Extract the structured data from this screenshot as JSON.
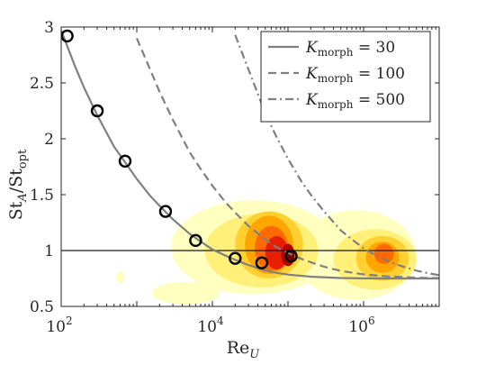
{
  "chart_data": {
    "type": "line",
    "xscale": "log",
    "xlim": [
      100,
      10000000
    ],
    "ylim": [
      0.5,
      3
    ],
    "xticks": [
      {
        "value": 100,
        "base": "10",
        "exp": "2"
      },
      {
        "value": 10000,
        "base": "10",
        "exp": "4"
      },
      {
        "value": 1000000,
        "base": "10",
        "exp": "6"
      }
    ],
    "yticks": [
      {
        "value": 0.5,
        "label": "0.5"
      },
      {
        "value": 1,
        "label": "1"
      },
      {
        "value": 1.5,
        "label": "1.5"
      },
      {
        "value": 2,
        "label": "2"
      },
      {
        "value": 2.5,
        "label": "2.5"
      },
      {
        "value": 3,
        "label": "3"
      }
    ],
    "xlabel": {
      "main": "Re",
      "sub": "U"
    },
    "ylabel": {
      "p1": "St",
      "sub1": "A",
      "p2": "/St",
      "sub2": "opt"
    },
    "reference_line": {
      "y": 1,
      "color": "#1a1a1a"
    },
    "series": [
      {
        "name": {
          "sym": "K",
          "sub": "morph",
          "rest": " = 30"
        },
        "K": 30,
        "style": "solid",
        "color": "#808080",
        "x": [
          100,
          150,
          200,
          300,
          500,
          700,
          1000,
          1500,
          2000,
          3000,
          5000,
          7000,
          10000,
          15000,
          20000,
          30000,
          50000,
          70000,
          100000,
          200000,
          500000,
          1000000,
          2000000,
          5000000,
          10000000
        ],
        "y": [
          2.97,
          2.66,
          2.46,
          2.21,
          1.93,
          1.79,
          1.64,
          1.49,
          1.4,
          1.28,
          1.15,
          1.08,
          1.01,
          0.953,
          0.917,
          0.87,
          0.822,
          0.801,
          0.785,
          0.766,
          0.754,
          0.751,
          0.75,
          0.75,
          0.75
        ]
      },
      {
        "name": {
          "sym": "K",
          "sub": "morph",
          "rest": " = 100"
        },
        "K": 100,
        "style": "dashed",
        "color": "#808080",
        "x": [
          1000,
          1500,
          2000,
          3000,
          5000,
          7000,
          10000,
          15000,
          20000,
          30000,
          50000,
          70000,
          100000,
          150000,
          200000,
          300000,
          500000,
          1000000,
          2000000,
          5000000,
          10000000
        ],
        "y": [
          2.9,
          2.62,
          2.42,
          2.17,
          1.88,
          1.73,
          1.58,
          1.43,
          1.34,
          1.22,
          1.1,
          1.03,
          0.978,
          0.926,
          0.895,
          0.856,
          0.818,
          0.786,
          0.769,
          0.757,
          0.753
        ]
      },
      {
        "name": {
          "sym": "K",
          "sub": "morph",
          "rest": " = 500"
        },
        "K": 500,
        "style": "dashdot",
        "color": "#808080",
        "x": [
          20000,
          30000,
          50000,
          70000,
          100000,
          150000,
          200000,
          300000,
          500000,
          700000,
          1000000,
          1500000,
          2000000,
          3000000,
          5000000,
          7000000,
          10000000
        ],
        "y": [
          2.93,
          2.62,
          2.23,
          2.02,
          1.82,
          1.62,
          1.5,
          1.35,
          1.18,
          1.1,
          1.02,
          0.951,
          0.912,
          0.866,
          0.82,
          0.798,
          0.78
        ]
      }
    ],
    "markers": {
      "style": "open-circle",
      "color": "#000000",
      "x": [
        120,
        300,
        700,
        2400,
        6000,
        20000,
        45000,
        110000
      ],
      "y": [
        2.92,
        2.25,
        1.8,
        1.35,
        1.09,
        0.93,
        0.89,
        0.95
      ]
    },
    "contour": {
      "description_colormap": "hot",
      "levels_colors": [
        "#FFFFC0",
        "#FFF07A",
        "#FFD030",
        "#FFA500",
        "#FF6A00",
        "#E81E00",
        "#B50000",
        "#7A0000"
      ],
      "regions": [
        {
          "level": 0,
          "points": [
            [
              40,
              0.53
            ],
            [
              60,
              0.72
            ],
            [
              80,
              0.8
            ],
            [
              60,
              0.86
            ],
            [
              38,
              0.72
            ]
          ],
          "closed": true
        },
        {
          "level": 0,
          "points": [
            [
              10.5,
              0.68
            ],
            [
              11.5,
              0.82
            ],
            [
              12.5,
              0.75
            ]
          ]
        },
        {
          "level": 0,
          "cx": 2.18,
          "cy": 0.76,
          "rx": 0.06,
          "ry": 0.05
        },
        {
          "level": 1,
          "points": [
            [
              11.5,
              0.53
            ],
            [
              14,
              0.7
            ],
            [
              18,
              0.82
            ],
            [
              24,
              0.84
            ],
            [
              28,
              0.8
            ],
            [
              30,
              0.7
            ],
            [
              28,
              0.6
            ],
            [
              20,
              0.56
            ],
            [
              13,
              0.52
            ]
          ],
          "closed": true
        },
        {
          "level": 2,
          "points": [
            [
              13,
              0.53
            ],
            [
              18,
              0.72
            ],
            [
              24,
              0.78
            ],
            [
              27,
              0.71
            ],
            [
              25,
              0.6
            ],
            [
              18,
              0.55
            ]
          ],
          "closed": true
        }
      ]
    },
    "legend": {
      "position": "top-right",
      "entries": [
        {
          "sym": "K",
          "sub": "morph",
          "rest": " = 30"
        },
        {
          "sym": "K",
          "sub": "morph",
          "rest": " = 100"
        },
        {
          "sym": "K",
          "sub": "morph",
          "rest": " = 500"
        }
      ]
    }
  }
}
